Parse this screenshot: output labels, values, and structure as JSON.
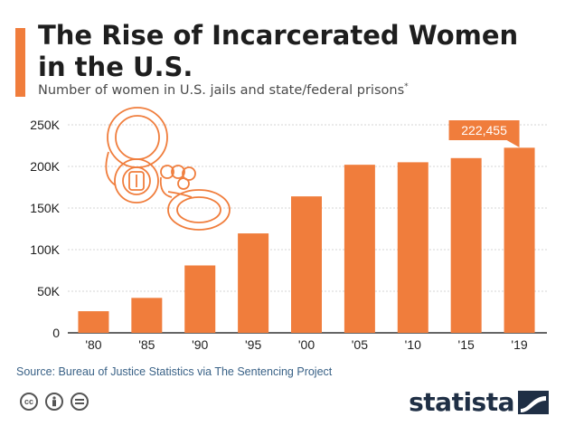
{
  "header": {
    "title": "The Rise of Incarcerated Women in the U.S.",
    "subtitle": "Number of women in U.S. jails and state/federal prisons",
    "subtitle_mark": "*"
  },
  "chart_data": {
    "type": "bar",
    "title": "The Rise of Incarcerated Women in the U.S.",
    "subtitle": "Number of women in U.S. jails and state/federal prisons*",
    "categories": [
      "'80",
      "'85",
      "'90",
      "'95",
      "'00",
      "'05",
      "'10",
      "'15",
      "'19"
    ],
    "values": [
      26000,
      42000,
      81000,
      119500,
      164000,
      202000,
      205000,
      210000,
      222455
    ],
    "yticks": [
      0,
      50000,
      100000,
      150000,
      200000,
      250000
    ],
    "ytick_labels": [
      "0",
      "50K",
      "100K",
      "150K",
      "200K",
      "250K"
    ],
    "ylim": [
      0,
      250000
    ],
    "grid": true,
    "callout": {
      "index": 8,
      "label": "222,455"
    },
    "color": "#f07d3c",
    "illustration": "handcuffs-icon"
  },
  "footer": {
    "source": "Source: Bureau of Justice Statistics via The Sentencing Project",
    "license_icons": [
      "cc-icon",
      "attribution-icon",
      "no-derivatives-icon"
    ],
    "brand": "statista"
  }
}
